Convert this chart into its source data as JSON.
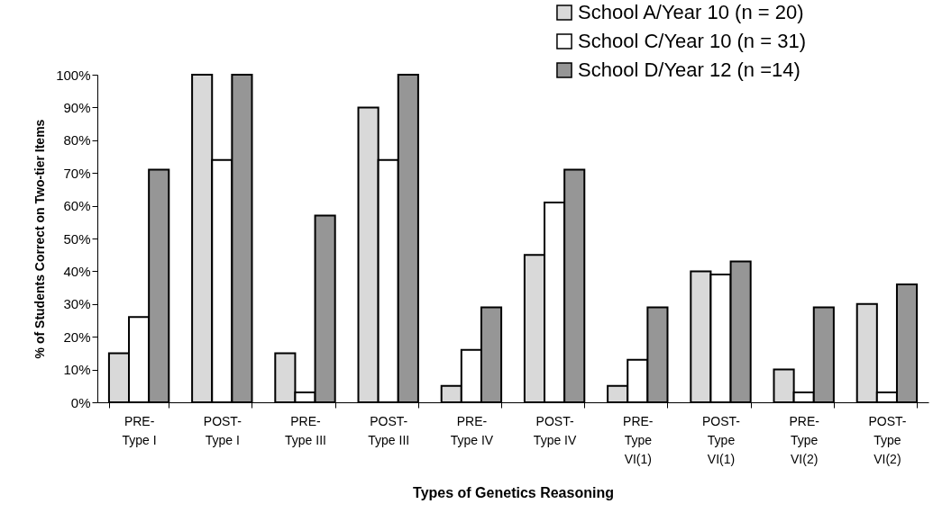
{
  "chart_data": {
    "type": "bar",
    "xlabel": "Types of Genetics Reasoning",
    "ylabel": "% of Students Correct on Two-tier Items",
    "categories": [
      "PRE-\nType I",
      "POST-\nType I",
      "PRE-\nType III",
      "POST-\nType III",
      "PRE-\nType IV",
      "POST-\nType IV",
      "PRE-\nType\nVI(1)",
      "POST-\nType\nVI(1)",
      "PRE-\nType\nVI(2)",
      "POST-\nType\nVI(2)"
    ],
    "series": [
      {
        "name": "School A/Year 10 (n = 20)",
        "color": "#d9d9d9",
        "values": [
          15,
          100,
          15,
          90,
          5,
          45,
          5,
          40,
          10,
          30
        ]
      },
      {
        "name": "School C/Year 10 (n = 31)",
        "color": "#ffffff",
        "values": [
          26,
          74,
          3,
          74,
          16,
          61,
          13,
          39,
          3,
          3
        ]
      },
      {
        "name": "School D/Year 12 (n =14)",
        "color": "#969696",
        "values": [
          71,
          100,
          57,
          100,
          29,
          71,
          29,
          43,
          29,
          36
        ]
      }
    ],
    "ylim": [
      0,
      100
    ],
    "yticks": [
      {
        "value": 0,
        "label": "0%"
      },
      {
        "value": 10,
        "label": "10%"
      },
      {
        "value": 20,
        "label": "20%"
      },
      {
        "value": 30,
        "label": "30%"
      },
      {
        "value": 40,
        "label": "40%"
      },
      {
        "value": 50,
        "label": "50%"
      },
      {
        "value": 60,
        "label": "60%"
      },
      {
        "value": 70,
        "label": "70%"
      },
      {
        "value": 80,
        "label": "80%"
      },
      {
        "value": 90,
        "label": "90%"
      },
      {
        "value": 100,
        "label": "100%"
      }
    ],
    "grid": false,
    "legend": "top right"
  }
}
